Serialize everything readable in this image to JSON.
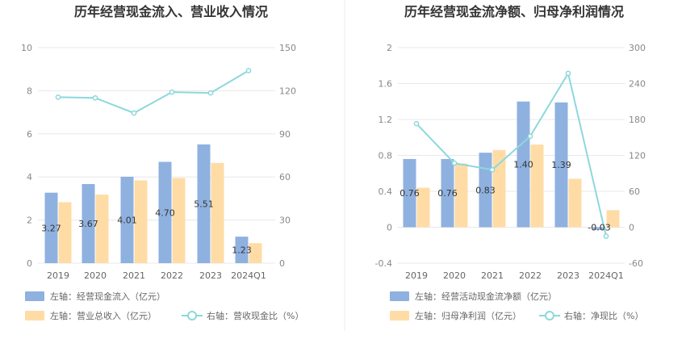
{
  "colors": {
    "bar_left": "#8fb1e0",
    "bar_right": "#ffdca6",
    "line": "#8dd8dc"
  },
  "chart_data": [
    {
      "type": "bar",
      "title": "历年经营现金流入、营业收入情况",
      "categories": [
        "2019",
        "2020",
        "2021",
        "2022",
        "2023",
        "2024Q1"
      ],
      "y_left": {
        "min": 0,
        "max": 10,
        "ticks": [
          "0",
          "2",
          "4",
          "6",
          "8",
          "10"
        ]
      },
      "y_right": {
        "min": 0,
        "max": 150,
        "ticks": [
          "0",
          "30",
          "60",
          "90",
          "120",
          "150"
        ]
      },
      "series": [
        {
          "name": "左轴：经营现金流入（亿元）",
          "kind": "bar",
          "axis": "left",
          "values": [
            3.27,
            3.67,
            4.01,
            4.7,
            5.51,
            1.23
          ],
          "labels": [
            "3.27",
            "3.67",
            "4.01",
            "4.70",
            "5.51",
            "1.23"
          ]
        },
        {
          "name": "左轴：营业总收入（亿元）",
          "kind": "bar",
          "axis": "left",
          "values": [
            2.83,
            3.18,
            3.84,
            3.95,
            4.65,
            0.93
          ]
        },
        {
          "name": "右轴：营收现金比（%）",
          "kind": "line",
          "axis": "right",
          "values": [
            115.5,
            115.0,
            104.5,
            119.0,
            118.5,
            134.0
          ]
        }
      ]
    },
    {
      "type": "bar",
      "title": "历年经营现金流净额、归母净利润情况",
      "categories": [
        "2019",
        "2020",
        "2021",
        "2022",
        "2023",
        "2024Q1"
      ],
      "y_left": {
        "min": -0.4,
        "max": 2,
        "ticks": [
          "-0.4",
          "0",
          "0.4",
          "0.8",
          "1.2",
          "1.6",
          "2"
        ]
      },
      "y_right": {
        "min": -60,
        "max": 300,
        "ticks": [
          "-60",
          "0",
          "60",
          "120",
          "180",
          "240",
          "300"
        ]
      },
      "series": [
        {
          "name": "左轴：经营活动现金流净额（亿元）",
          "kind": "bar",
          "axis": "left",
          "values": [
            0.76,
            0.76,
            0.83,
            1.4,
            1.39,
            -0.03
          ],
          "labels": [
            "0.76",
            "0.76",
            "0.83",
            "1.40",
            "1.39",
            "-0.03"
          ]
        },
        {
          "name": "左轴：归母净利润（亿元）",
          "kind": "bar",
          "axis": "left",
          "values": [
            0.44,
            0.71,
            0.86,
            0.92,
            0.54,
            0.19
          ]
        },
        {
          "name": "右轴：净现比（%）",
          "kind": "line",
          "axis": "right",
          "values": [
            173,
            107,
            96,
            152,
            257,
            -15
          ]
        }
      ]
    }
  ]
}
